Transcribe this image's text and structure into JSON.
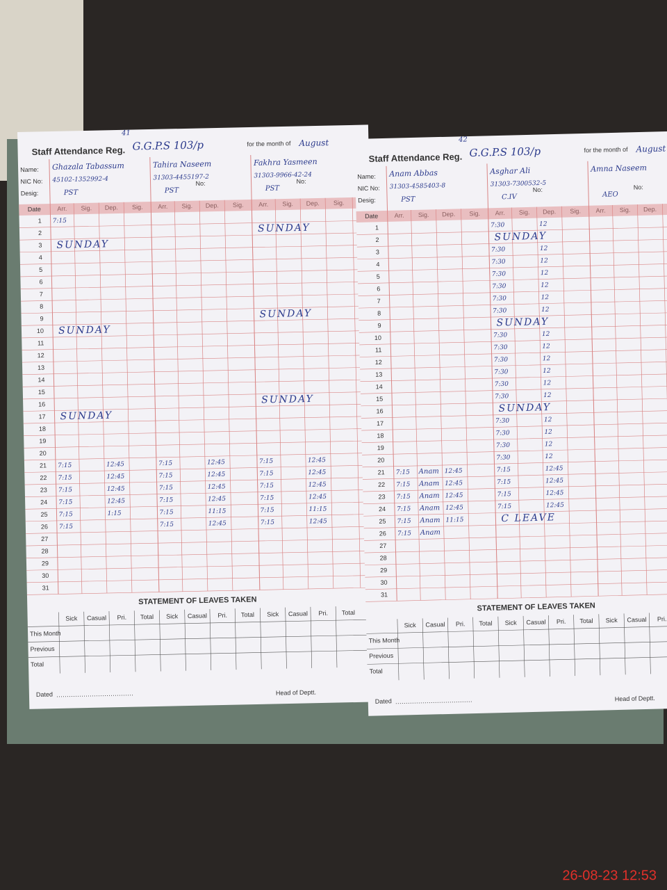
{
  "timestamp": "26-08-23 12:53",
  "left_page": {
    "page_no": "41",
    "title": "Staff Attendance Reg.",
    "school": "G.G.P.S 103/p",
    "month_label": "for the month of",
    "month": "August",
    "labels": {
      "name": "Name:",
      "nic": "NIC No:",
      "no": "No:",
      "desig": "Desig:",
      "date": "Date",
      "arr": "Arr.",
      "sig": "Sig.",
      "dep": "Dep."
    },
    "staff": [
      {
        "name": "Ghazala Tabassum",
        "nic": "45102-1352992-4",
        "desig": "PST"
      },
      {
        "name": "Tahira Naseem",
        "nic": "31303-4455197-2",
        "desig": "PST"
      },
      {
        "name": "Fakhra Yasmeen",
        "nic": "31303-9966-42-24",
        "desig": "PST"
      }
    ],
    "days": [
      1,
      2,
      3,
      4,
      5,
      6,
      7,
      8,
      9,
      10,
      11,
      12,
      13,
      14,
      15,
      16,
      17,
      18,
      19,
      20,
      21,
      22,
      23,
      24,
      25,
      26,
      27,
      28,
      29,
      30,
      31
    ],
    "marks": [
      {
        "day": 3,
        "staff": 0,
        "text": "SUNDAY"
      },
      {
        "day": 10,
        "staff": 0,
        "text": "SUNDAY"
      },
      {
        "day": 17,
        "staff": 0,
        "text": "SUNDAY"
      },
      {
        "day": 2,
        "staff": 2,
        "text": "SUNDAY"
      },
      {
        "day": 9,
        "staff": 2,
        "text": "SUNDAY"
      },
      {
        "day": 16,
        "staff": 2,
        "text": "SUNDAY"
      }
    ],
    "entries": [
      {
        "day": 1,
        "staff": 0,
        "arr": "7:15"
      },
      {
        "day": 21,
        "staff": 0,
        "arr": "7:15",
        "dep": "12:45"
      },
      {
        "day": 21,
        "staff": 1,
        "arr": "7:15",
        "dep": "12:45"
      },
      {
        "day": 21,
        "staff": 2,
        "arr": "7:15",
        "dep": "12:45"
      },
      {
        "day": 22,
        "staff": 0,
        "arr": "7:15",
        "dep": "12:45"
      },
      {
        "day": 22,
        "staff": 1,
        "arr": "7:15",
        "dep": "12:45"
      },
      {
        "day": 22,
        "staff": 2,
        "arr": "7:15",
        "dep": "12:45"
      },
      {
        "day": 23,
        "staff": 0,
        "arr": "7:15",
        "dep": "12:45"
      },
      {
        "day": 23,
        "staff": 1,
        "arr": "7:15",
        "dep": "12:45"
      },
      {
        "day": 23,
        "staff": 2,
        "arr": "7:15",
        "dep": "12:45"
      },
      {
        "day": 24,
        "staff": 0,
        "arr": "7:15",
        "dep": "12:45"
      },
      {
        "day": 24,
        "staff": 1,
        "arr": "7:15",
        "dep": "12:45"
      },
      {
        "day": 24,
        "staff": 2,
        "arr": "7:15",
        "dep": "12:45"
      },
      {
        "day": 25,
        "staff": 0,
        "arr": "7:15",
        "dep": "1:15"
      },
      {
        "day": 25,
        "staff": 1,
        "arr": "7:15",
        "dep": "11:15"
      },
      {
        "day": 25,
        "staff": 2,
        "arr": "7:15",
        "dep": "11:15"
      },
      {
        "day": 26,
        "staff": 0,
        "arr": "7:15"
      },
      {
        "day": 26,
        "staff": 1,
        "arr": "7:15",
        "dep": "12:45"
      },
      {
        "day": 26,
        "staff": 2,
        "arr": "7:15",
        "dep": "12:45"
      }
    ],
    "leaves_title": "STATEMENT OF LEAVES TAKEN",
    "leave_cols": [
      "Sick",
      "Casual",
      "Pri.",
      "Total"
    ],
    "leave_rows": [
      "This Month",
      "Previous",
      "Total"
    ],
    "dated": "Dated",
    "head": "Head of Deptt."
  },
  "right_page": {
    "page_no": "42",
    "title": "Staff Attendance Reg.",
    "school": "G.G.P.S 103/p",
    "month_label": "for the month of",
    "month": "August",
    "labels": {
      "name": "Name:",
      "nic": "NIC No:",
      "no": "No:",
      "desig": "Desig:",
      "date": "Date",
      "arr": "Arr.",
      "sig": "Sig.",
      "dep": "Dep."
    },
    "staff": [
      {
        "name": "Anam Abbas",
        "nic": "31303-4585403-8",
        "desig": "PST"
      },
      {
        "name": "Asghar Ali",
        "nic": "31303-7300532-5",
        "desig": "C.IV"
      },
      {
        "name": "Amna Naseem",
        "nic": "",
        "desig": "AEO"
      }
    ],
    "days": [
      1,
      2,
      3,
      4,
      5,
      6,
      7,
      8,
      9,
      10,
      11,
      12,
      13,
      14,
      15,
      16,
      17,
      18,
      19,
      20,
      21,
      22,
      23,
      24,
      25,
      26,
      27,
      28,
      29,
      30,
      31
    ],
    "marks": [
      {
        "day": 2,
        "staff": 1,
        "text": "SUNDAY"
      },
      {
        "day": 9,
        "staff": 1,
        "text": "SUNDAY"
      },
      {
        "day": 16,
        "staff": 1,
        "text": "SUNDAY"
      },
      {
        "day": 25,
        "staff": 1,
        "text": "C LEAVE"
      }
    ],
    "entries": [
      {
        "day": 1,
        "staff": 1,
        "arr": "7:30",
        "dep": "12"
      },
      {
        "day": 3,
        "staff": 1,
        "arr": "7:30",
        "dep": "12"
      },
      {
        "day": 4,
        "staff": 1,
        "arr": "7:30",
        "dep": "12"
      },
      {
        "day": 5,
        "staff": 1,
        "arr": "7:30",
        "dep": "12"
      },
      {
        "day": 6,
        "staff": 1,
        "arr": "7:30",
        "dep": "12"
      },
      {
        "day": 7,
        "staff": 1,
        "arr": "7:30",
        "dep": "12"
      },
      {
        "day": 8,
        "staff": 1,
        "arr": "7:30",
        "dep": "12"
      },
      {
        "day": 10,
        "staff": 1,
        "arr": "7:30",
        "dep": "12"
      },
      {
        "day": 11,
        "staff": 1,
        "arr": "7:30",
        "dep": "12"
      },
      {
        "day": 12,
        "staff": 1,
        "arr": "7:30",
        "dep": "12"
      },
      {
        "day": 13,
        "staff": 1,
        "arr": "7:30",
        "dep": "12"
      },
      {
        "day": 14,
        "staff": 1,
        "arr": "7:30",
        "dep": "12"
      },
      {
        "day": 15,
        "staff": 1,
        "arr": "7:30",
        "dep": "12"
      },
      {
        "day": 17,
        "staff": 1,
        "arr": "7:30",
        "dep": "12"
      },
      {
        "day": 18,
        "staff": 1,
        "arr": "7:30",
        "dep": "12"
      },
      {
        "day": 19,
        "staff": 1,
        "arr": "7:30",
        "dep": "12"
      },
      {
        "day": 20,
        "staff": 1,
        "arr": "7:30",
        "dep": "12"
      },
      {
        "day": 21,
        "staff": 0,
        "arr": "7:15",
        "sig": "Anam",
        "dep": "12:45"
      },
      {
        "day": 22,
        "staff": 0,
        "arr": "7:15",
        "sig": "Anam",
        "dep": "12:45"
      },
      {
        "day": 23,
        "staff": 0,
        "arr": "7:15",
        "sig": "Anam",
        "dep": "12:45"
      },
      {
        "day": 24,
        "staff": 0,
        "arr": "7:15",
        "sig": "Anam",
        "dep": "12:45"
      },
      {
        "day": 25,
        "staff": 0,
        "arr": "7:15",
        "sig": "Anam",
        "dep": "11:15"
      },
      {
        "day": 26,
        "staff": 0,
        "arr": "7:15",
        "sig": "Anam"
      },
      {
        "day": 21,
        "staff": 1,
        "arr": "7:15",
        "dep": "12:45"
      },
      {
        "day": 22,
        "staff": 1,
        "arr": "7:15",
        "dep": "12:45"
      },
      {
        "day": 23,
        "staff": 1,
        "arr": "7:15",
        "dep": "12:45"
      },
      {
        "day": 24,
        "staff": 1,
        "arr": "7:15",
        "dep": "12:45"
      }
    ],
    "leaves_title": "STATEMENT OF LEAVES TAKEN",
    "leave_cols": [
      "Sick",
      "Casual",
      "Pri.",
      "Total"
    ],
    "leave_rows": [
      "This Month",
      "Previous",
      "Total"
    ],
    "dated": "Dated",
    "head": "Head of Deptt."
  }
}
